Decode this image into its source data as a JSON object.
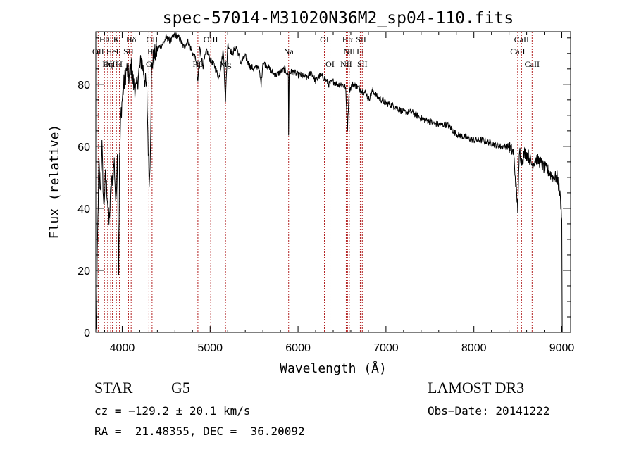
{
  "chart_data": {
    "type": "line",
    "title": "spec-57014-M31020N36M2_sp04-110.fits",
    "xlabel": "Wavelength (Å)",
    "ylabel": "Flux (relative)",
    "xlim": [
      3700,
      9100
    ],
    "ylim": [
      0,
      97
    ],
    "xticks": [
      4000,
      5000,
      6000,
      7000,
      8000,
      9000
    ],
    "yticks": [
      0,
      20,
      40,
      60,
      80
    ],
    "xtick_labels": [
      "4000",
      "5000",
      "6000",
      "7000",
      "8000",
      "9000"
    ],
    "ytick_labels": [
      "0",
      "20",
      "40",
      "60",
      "80"
    ],
    "spectrum": {
      "name": "flux",
      "x": [
        3705,
        3720,
        3735,
        3750,
        3770,
        3790,
        3810,
        3830,
        3850,
        3870,
        3890,
        3910,
        3930,
        3945,
        3960,
        3970,
        3985,
        4000,
        4020,
        4050,
        4080,
        4100,
        4130,
        4160,
        4190,
        4220,
        4250,
        4280,
        4300,
        4310,
        4320,
        4335,
        4350,
        4380,
        4420,
        4460,
        4500,
        4550,
        4600,
        4650,
        4700,
        4750,
        4800,
        4840,
        4861,
        4880,
        4920,
        4960,
        5000,
        5050,
        5100,
        5150,
        5175,
        5200,
        5250,
        5300,
        5350,
        5400,
        5450,
        5500,
        5550,
        5580,
        5600,
        5650,
        5700,
        5750,
        5800,
        5850,
        5890,
        5893,
        5900,
        5950,
        6000,
        6050,
        6100,
        6150,
        6200,
        6250,
        6300,
        6350,
        6400,
        6450,
        6500,
        6540,
        6563,
        6580,
        6620,
        6680,
        6720,
        6780,
        6800,
        6850,
        6900,
        7000,
        7100,
        7200,
        7300,
        7400,
        7500,
        7600,
        7700,
        7800,
        7900,
        8000,
        8100,
        8200,
        8300,
        8400,
        8450,
        8498,
        8520,
        8542,
        8580,
        8620,
        8662,
        8700,
        8750,
        8800,
        8850,
        8900,
        8950,
        8980,
        9000,
        9005
      ],
      "y": [
        0,
        30,
        55,
        45,
        60,
        40,
        50,
        45,
        35,
        45,
        50,
        55,
        40,
        60,
        20,
        55,
        70,
        75,
        80,
        85,
        82,
        86,
        80,
        78,
        84,
        88,
        83,
        78,
        55,
        48,
        60,
        85,
        88,
        90,
        92,
        93,
        95,
        94,
        96,
        95,
        92,
        94,
        90,
        88,
        80,
        92,
        86,
        91,
        88,
        86,
        82,
        91,
        75,
        93,
        90,
        92,
        87,
        89,
        86,
        85,
        86,
        80,
        87,
        86,
        84,
        83,
        84,
        85,
        83,
        64,
        84,
        84,
        83,
        83,
        82,
        84,
        81,
        83,
        82,
        80,
        81,
        80,
        80,
        79,
        66,
        78,
        80,
        79,
        78,
        77,
        75,
        78,
        76,
        74,
        73,
        71,
        71,
        69,
        68,
        67,
        67,
        64,
        63,
        62,
        62,
        61,
        60,
        60,
        58,
        40,
        59,
        55,
        58,
        57,
        54,
        56,
        55,
        53,
        52,
        50,
        50,
        44,
        38,
        0
      ]
    },
    "lines": [
      {
        "label": "Hθ",
        "wavelength": 3798,
        "row": 0
      },
      {
        "label": "OII",
        "wavelength": 3727,
        "row": 1
      },
      {
        "label": "OIII",
        "wavelength": 3869,
        "row": 2
      },
      {
        "label": "K",
        "wavelength": 3934,
        "row": 0
      },
      {
        "label": "HeI",
        "wavelength": 3889,
        "row": 1
      },
      {
        "label": "Hη",
        "wavelength": 3835,
        "row": 2
      },
      {
        "label": "H",
        "wavelength": 3969,
        "row": 2
      },
      {
        "label": "Hδ",
        "wavelength": 4102,
        "row": 0
      },
      {
        "label": "SII",
        "wavelength": 4072,
        "row": 1
      },
      {
        "label": "OII",
        "wavelength": 4340,
        "row": 0
      },
      {
        "label": "Hγ",
        "wavelength": 4341,
        "row": 1
      },
      {
        "label": "G",
        "wavelength": 4304,
        "row": 2
      },
      {
        "label": "OIII",
        "wavelength": 5007,
        "row": 0
      },
      {
        "label": "Hβ",
        "wavelength": 4861,
        "row": 2
      },
      {
        "label": "Mg",
        "wavelength": 5175,
        "row": 2
      },
      {
        "label": "Na",
        "wavelength": 5893,
        "row": 1
      },
      {
        "label": "OI",
        "wavelength": 6300,
        "row": 0
      },
      {
        "label": "OI",
        "wavelength": 6364,
        "row": 2
      },
      {
        "label": "Hα",
        "wavelength": 6563,
        "row": 0
      },
      {
        "label": "SII",
        "wavelength": 6717,
        "row": 0
      },
      {
        "label": "NII",
        "wavelength": 6583,
        "row": 1
      },
      {
        "label": "Li",
        "wavelength": 6708,
        "row": 1
      },
      {
        "label": "NII",
        "wavelength": 6548,
        "row": 2
      },
      {
        "label": "SII",
        "wavelength": 6731,
        "row": 2
      },
      {
        "label": "CaII",
        "wavelength": 8542,
        "row": 0
      },
      {
        "label": "CaII",
        "wavelength": 8498,
        "row": 1
      },
      {
        "label": "CaII",
        "wavelength": 8662,
        "row": 2
      }
    ]
  },
  "footer": {
    "class_label": "STAR",
    "subclass": "G5",
    "survey": "LAMOST DR3",
    "cz": "cz = −129.2 ± 20.1 km/s",
    "obs_date": "Obs−Date: 20141222",
    "radec": "RA =  21.48355, DEC =  36.20092"
  }
}
